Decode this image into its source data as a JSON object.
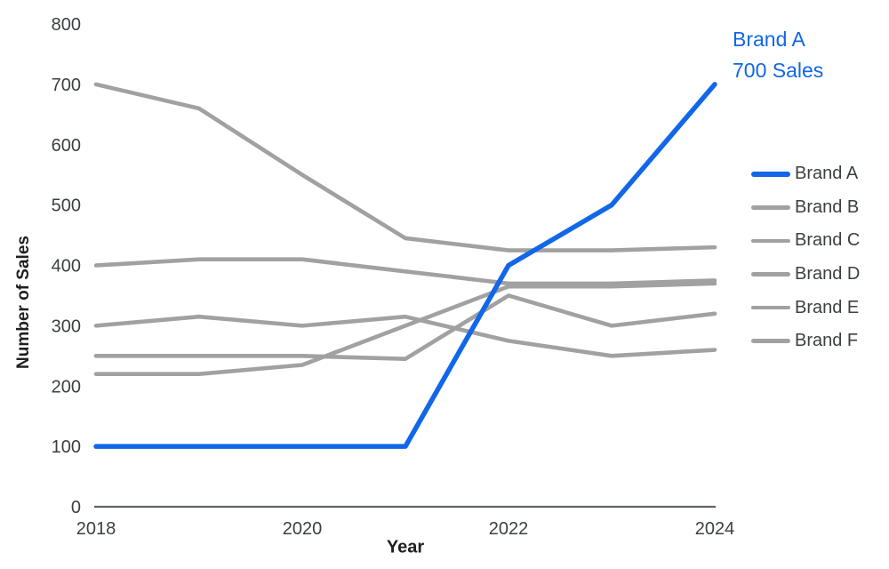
{
  "chart_data": {
    "type": "line",
    "title": "",
    "xlabel": "Year",
    "ylabel": "Number of Sales",
    "x": [
      2018,
      2019,
      2020,
      2021,
      2022,
      2023,
      2024
    ],
    "xticks": [
      2018,
      2020,
      2022,
      2024
    ],
    "yticks": [
      0,
      100,
      200,
      300,
      400,
      500,
      600,
      700,
      800
    ],
    "xlim": [
      2018,
      2024
    ],
    "ylim": [
      0,
      800
    ],
    "grid": false,
    "legend_position": "right",
    "series": [
      {
        "name": "Brand A",
        "values": [
          100,
          100,
          100,
          100,
          400,
          500,
          700
        ],
        "color": "#1167e8",
        "width": 5.5,
        "highlight": true
      },
      {
        "name": "Brand B",
        "values": [
          700,
          660,
          550,
          445,
          425,
          425,
          430
        ],
        "color": "#a1a1a1",
        "width": 4.6,
        "highlight": false
      },
      {
        "name": "Brand C",
        "values": [
          400,
          410,
          410,
          390,
          370,
          370,
          375
        ],
        "color": "#a1a1a1",
        "width": 4.6,
        "highlight": false
      },
      {
        "name": "Brand D",
        "values": [
          300,
          315,
          300,
          315,
          275,
          250,
          260
        ],
        "color": "#a1a1a1",
        "width": 4.6,
        "highlight": false
      },
      {
        "name": "Brand E",
        "values": [
          250,
          250,
          250,
          245,
          350,
          300,
          320
        ],
        "color": "#a1a1a1",
        "width": 4.6,
        "highlight": false
      },
      {
        "name": "Brand F",
        "values": [
          220,
          220,
          235,
          300,
          365,
          365,
          370
        ],
        "color": "#a1a1a1",
        "width": 4.6,
        "highlight": false
      }
    ],
    "annotation": {
      "lines": [
        "Brand A",
        "700 Sales"
      ],
      "color": "#1167e8"
    },
    "axis_color": "#5f6368",
    "tick_color": "#3c4043"
  }
}
